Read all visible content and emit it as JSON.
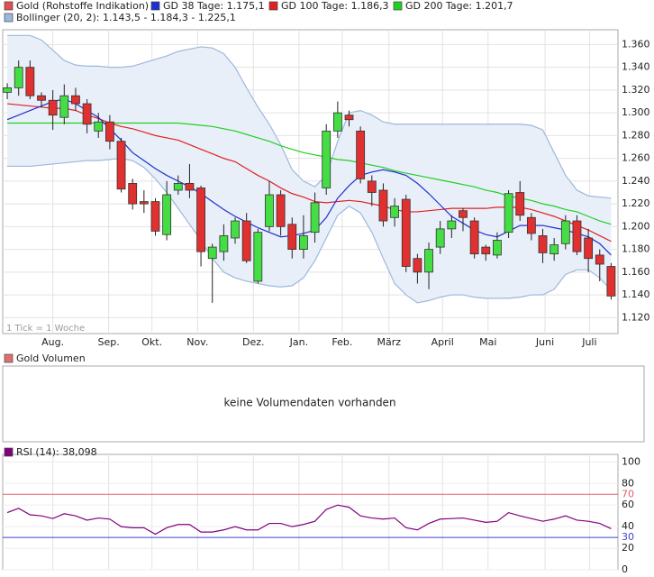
{
  "chart_data": [
    {
      "type": "candlestick",
      "candles": {
        "name": "Gold (Rohstoffe Indikation)",
        "color": "#e05050",
        "up_color": "#44dd44",
        "down_color": "#e03030",
        "open": [
          1318,
          1322,
          1340,
          1315,
          1311,
          1296,
          1315,
          1308,
          1284,
          1292,
          1275,
          1238,
          1222,
          1222,
          1193,
          1232,
          1238,
          1234,
          1172,
          1178,
          1190,
          1205,
          1152,
          1200,
          1228,
          1202,
          1180,
          1195,
          1234,
          1284,
          1298,
          1284,
          1240,
          1232,
          1208,
          1224,
          1172,
          1160,
          1182,
          1198,
          1214,
          1205,
          1182,
          1175,
          1195,
          1230,
          1208,
          1192,
          1176,
          1185,
          1205,
          1190,
          1175,
          1165
        ],
        "high": [
          1326,
          1346,
          1346,
          1318,
          1320,
          1325,
          1322,
          1312,
          1300,
          1298,
          1278,
          1242,
          1232,
          1225,
          1240,
          1245,
          1255,
          1236,
          1185,
          1202,
          1208,
          1212,
          1198,
          1240,
          1232,
          1208,
          1210,
          1230,
          1290,
          1310,
          1302,
          1288,
          1245,
          1238,
          1225,
          1228,
          1176,
          1186,
          1205,
          1210,
          1216,
          1208,
          1184,
          1195,
          1232,
          1240,
          1212,
          1198,
          1190,
          1210,
          1210,
          1198,
          1180,
          1168
        ],
        "low": [
          1312,
          1315,
          1312,
          1305,
          1285,
          1290,
          1302,
          1282,
          1278,
          1268,
          1230,
          1215,
          1212,
          1192,
          1188,
          1228,
          1225,
          1165,
          1133,
          1170,
          1185,
          1168,
          1150,
          1196,
          1192,
          1172,
          1172,
          1186,
          1228,
          1278,
          1288,
          1238,
          1218,
          1200,
          1200,
          1160,
          1150,
          1145,
          1176,
          1190,
          1196,
          1172,
          1170,
          1172,
          1190,
          1205,
          1188,
          1168,
          1170,
          1180,
          1175,
          1160,
          1152,
          1136
        ],
        "close": [
          1322,
          1340,
          1315,
          1311,
          1298,
          1315,
          1308,
          1290,
          1292,
          1275,
          1233,
          1220,
          1220,
          1196,
          1228,
          1238,
          1232,
          1178,
          1182,
          1192,
          1205,
          1170,
          1195,
          1228,
          1200,
          1180,
          1192,
          1221,
          1284,
          1300,
          1294,
          1242,
          1230,
          1205,
          1218,
          1165,
          1160,
          1180,
          1198,
          1205,
          1208,
          1176,
          1176,
          1188,
          1229,
          1210,
          1194,
          1177,
          1184,
          1205,
          1178,
          1172,
          1167,
          1139
        ]
      },
      "lines": [
        {
          "name": "GD 38 Tage: 1.175,1",
          "color": "#2030d0",
          "values": [
            1294,
            1298,
            1302,
            1306,
            1310,
            1312,
            1308,
            1302,
            1296,
            1286,
            1276,
            1265,
            1258,
            1251,
            1245,
            1240,
            1235,
            1229,
            1222,
            1215,
            1209,
            1204,
            1199,
            1195,
            1191,
            1192,
            1194,
            1197,
            1208,
            1225,
            1236,
            1245,
            1248,
            1250,
            1248,
            1245,
            1238,
            1229,
            1219,
            1209,
            1203,
            1197,
            1193,
            1191,
            1196,
            1201,
            1201,
            1201,
            1199,
            1197,
            1194,
            1191,
            1185,
            1175
          ]
        },
        {
          "name": "GD 100 Tage: 1.186,3",
          "color": "#e02020",
          "values": [
            1308,
            1307,
            1306,
            1305,
            1304,
            1304,
            1302,
            1298,
            1295,
            1291,
            1288,
            1286,
            1283,
            1280,
            1278,
            1276,
            1272,
            1268,
            1264,
            1260,
            1257,
            1251,
            1245,
            1240,
            1234,
            1229,
            1226,
            1222,
            1221,
            1222,
            1223,
            1222,
            1220,
            1218,
            1215,
            1213,
            1213,
            1214,
            1215,
            1216,
            1216,
            1216,
            1216,
            1217,
            1217,
            1217,
            1215,
            1212,
            1209,
            1205,
            1201,
            1197,
            1192,
            1187
          ]
        },
        {
          "name": "GD 200 Tage: 1.201,7",
          "color": "#20d020",
          "values": [
            1291,
            1291,
            1291,
            1291,
            1291,
            1291,
            1291,
            1291,
            1291,
            1291,
            1291,
            1291,
            1291,
            1291,
            1291,
            1291,
            1290,
            1289,
            1288,
            1286,
            1284,
            1281,
            1278,
            1275,
            1271,
            1268,
            1265,
            1263,
            1261,
            1259,
            1258,
            1256,
            1254,
            1252,
            1249,
            1247,
            1245,
            1243,
            1241,
            1239,
            1237,
            1235,
            1232,
            1230,
            1227,
            1225,
            1223,
            1220,
            1218,
            1215,
            1213,
            1209,
            1205,
            1202
          ]
        }
      ],
      "band": {
        "name": "Bollinger (20, 2): 1.143,5 - 1.184,3 - 1.225,1",
        "color": "#9db8dc",
        "fill": "#e8eff9",
        "upper": [
          1368,
          1368,
          1368,
          1364,
          1355,
          1346,
          1342,
          1341,
          1341,
          1340,
          1340,
          1341,
          1344,
          1347,
          1350,
          1354,
          1356,
          1358,
          1357,
          1352,
          1340,
          1322,
          1305,
          1290,
          1272,
          1250,
          1240,
          1235,
          1245,
          1275,
          1300,
          1302,
          1298,
          1292,
          1290,
          1290,
          1290,
          1290,
          1290,
          1290,
          1290,
          1290,
          1290,
          1290,
          1290,
          1290,
          1289,
          1285,
          1265,
          1245,
          1232,
          1227,
          1226,
          1225
        ],
        "lower": [
          1253,
          1253,
          1253,
          1254,
          1255,
          1256,
          1257,
          1258,
          1258,
          1259,
          1260,
          1258,
          1252,
          1242,
          1230,
          1216,
          1202,
          1188,
          1172,
          1160,
          1155,
          1152,
          1150,
          1148,
          1147,
          1148,
          1155,
          1170,
          1190,
          1210,
          1218,
          1212,
          1195,
          1172,
          1150,
          1140,
          1133,
          1135,
          1138,
          1140,
          1140,
          1138,
          1137,
          1137,
          1137,
          1138,
          1140,
          1140,
          1145,
          1158,
          1162,
          1162,
          1155,
          1144
        ]
      },
      "annotation": "1 Tick = 1 Woche",
      "xlim": [
        -0.4,
        53.6
      ],
      "xticks": [
        {
          "value": 4,
          "label": "Aug."
        },
        {
          "value": 8.9,
          "label": "Sep."
        },
        {
          "value": 12.7,
          "label": "Okt."
        },
        {
          "value": 16.7,
          "label": "Nov."
        },
        {
          "value": 21.6,
          "label": "Dez."
        },
        {
          "value": 25.6,
          "label": "Jan."
        },
        {
          "value": 29.4,
          "label": "Feb."
        },
        {
          "value": 33.5,
          "label": "März"
        },
        {
          "value": 38.2,
          "label": "April"
        },
        {
          "value": 42.2,
          "label": "Mai"
        },
        {
          "value": 47.2,
          "label": "Juni"
        },
        {
          "value": 51.1,
          "label": "Juli"
        }
      ],
      "ylim": [
        1106,
        1373
      ],
      "yticks": [
        {
          "value": 1120,
          "label": "1.120"
        },
        {
          "value": 1140,
          "label": "1.140"
        },
        {
          "value": 1160,
          "label": "1.160"
        },
        {
          "value": 1180,
          "label": "1.180"
        },
        {
          "value": 1200,
          "label": "1.200"
        },
        {
          "value": 1220,
          "label": "1.220"
        },
        {
          "value": 1240,
          "label": "1.240"
        },
        {
          "value": 1260,
          "label": "1.260"
        },
        {
          "value": 1280,
          "label": "1.280"
        },
        {
          "value": 1300,
          "label": "1.300"
        },
        {
          "value": 1320,
          "label": "1.320"
        },
        {
          "value": 1340,
          "label": "1.340"
        },
        {
          "value": 1360,
          "label": "1.360"
        }
      ],
      "grid": true
    },
    {
      "type": "empty",
      "title": "Gold Volumen",
      "color": "#e07070",
      "message": "keine Volumendaten vorhanden"
    },
    {
      "type": "line",
      "series": [
        {
          "name": "RSI (14): 38,098",
          "color": "#800080",
          "values": [
            53,
            57,
            51,
            50,
            47.5,
            52,
            50,
            46,
            48,
            47,
            40,
            39,
            39,
            33,
            39,
            42,
            42,
            35,
            35,
            37,
            40,
            37,
            37,
            43,
            43,
            40,
            42,
            45,
            56,
            60,
            58,
            50,
            48,
            47,
            48,
            39,
            37,
            43,
            47,
            47.5,
            48,
            46,
            44,
            45,
            53,
            50,
            47.5,
            45,
            47,
            50,
            46,
            45,
            43,
            38.1
          ]
        }
      ],
      "ylim": [
        0,
        107
      ],
      "yticks": [
        0,
        20,
        40,
        60,
        80,
        100
      ],
      "reference_lines": [
        {
          "value": 70,
          "color": "#e06070"
        },
        {
          "value": 30,
          "color": "#4040d0"
        }
      ],
      "grid": true
    }
  ]
}
